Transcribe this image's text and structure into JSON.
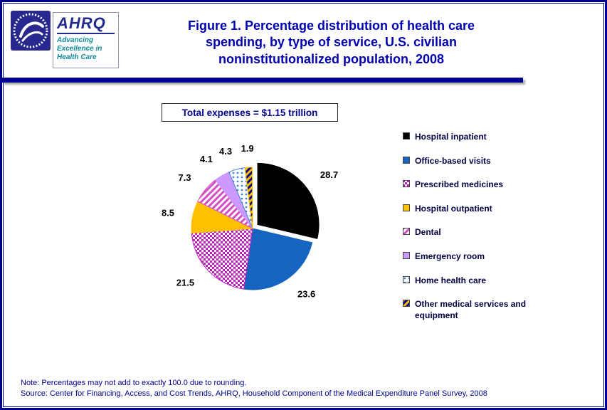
{
  "colors": {
    "navy": "#00008F",
    "title-blue": "#0000AE",
    "teal": "#0C8A99",
    "legend-text": "#000042"
  },
  "header": {
    "logo": {
      "acronym": "AHRQ",
      "tagline_lines": [
        "Advancing",
        "Excellence in",
        "Health Care"
      ]
    },
    "title_lines": [
      "Figure 1. Percentage distribution of health care",
      "spending, by type of service, U.S. civilian",
      "noninstitutionalized population, 2008"
    ]
  },
  "chart_data": {
    "type": "pie",
    "title": "Figure 1. Percentage distribution of health care spending, by type of service, U.S. civilian noninstitutionalized population, 2008",
    "total_annotation": "Total expenses = $1.15 trillion",
    "units": "percent",
    "legend_position": "right",
    "slices": [
      {
        "label": "Hospital inpatient",
        "value": 28.7,
        "color": "#000000",
        "pattern": "solid",
        "exploded": true
      },
      {
        "label": "Office-based visits",
        "value": 23.6,
        "color": "#1565C0",
        "pattern": "solid"
      },
      {
        "label": "Prescribed medicines",
        "value": 21.5,
        "color": "#C020C0",
        "bg": "#FFFFFF",
        "pattern": "checker"
      },
      {
        "label": "Hospital outpatient",
        "value": 8.5,
        "color": "#FFC000",
        "pattern": "solid"
      },
      {
        "label": "Dental",
        "value": 7.3,
        "color": "#D44FC4",
        "bg": "#FFFFFF",
        "pattern": "diag"
      },
      {
        "label": "Emergency room",
        "value": 4.1,
        "color": "#CC99FF",
        "pattern": "solid"
      },
      {
        "label": "Home health care",
        "value": 4.3,
        "color": "#4A86D8",
        "bg": "#FFFFFF",
        "pattern": "dots"
      },
      {
        "label": "Other medical services and equipment",
        "value": 1.9,
        "color": "#FFC000",
        "bg": "#00008F",
        "pattern": "diag"
      }
    ]
  },
  "footer": {
    "note": "Note: Percentages may not add to exactly 100.0 due to rounding.",
    "source": "Source: Center for Financing, Access, and Cost Trends, AHRQ, Household Component of the Medical Expenditure Panel Survey, 2008"
  }
}
